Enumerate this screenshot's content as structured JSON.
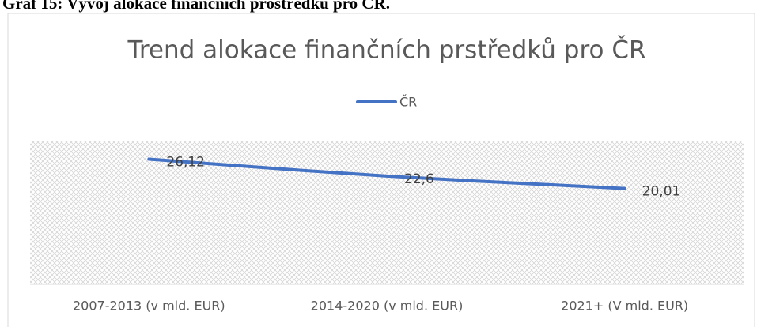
{
  "caption": "Graf 15: Vývoj alokace finančních prostředků pro ČR.",
  "chart_data": {
    "type": "line",
    "title": "Trend alokace finančních prstředků pro ČR",
    "categories": [
      "2007-2013 (v mld. EUR)",
      "2014-2020 (v mld. EUR)",
      "2021+  (V mld. EUR)"
    ],
    "series": [
      {
        "name": "ČR",
        "color": "#4472c4",
        "values": [
          26.12,
          22.6,
          20.01
        ],
        "value_labels": [
          "26,12",
          "22,6",
          "20,01"
        ]
      }
    ],
    "ylim": [
      0,
      30
    ],
    "legend": "top"
  }
}
